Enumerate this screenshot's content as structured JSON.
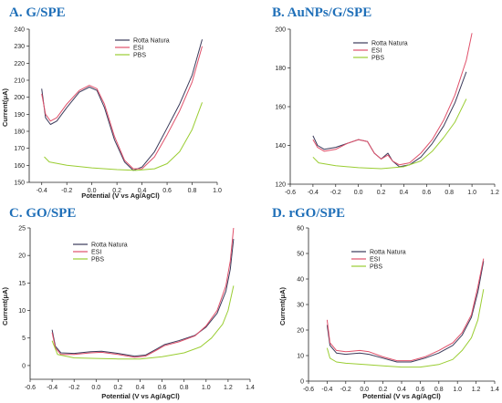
{
  "colors": {
    "rotta": "#3a3a5a",
    "esi": "#e0506a",
    "pbs": "#9acd32",
    "title": "#1f6fb8"
  },
  "chart_data": [
    {
      "type": "line",
      "title": "A.   G/SPE",
      "xlabel": "Potential (V vs Ag/AgCl)",
      "ylabel": "Current(μA)",
      "xlim": [
        -0.5,
        1.0
      ],
      "ylim": [
        150,
        240
      ],
      "xticks": [
        -0.4,
        -0.2,
        0.0,
        0.2,
        0.4,
        0.6,
        0.8,
        1.0
      ],
      "yticks": [
        150,
        160,
        170,
        180,
        190,
        200,
        210,
        220,
        230,
        240
      ],
      "legend": "top-left",
      "series": [
        {
          "name": "Rotta Natura",
          "color": "#3a3a5a",
          "x": [
            -0.4,
            -0.37,
            -0.33,
            -0.28,
            -0.2,
            -0.1,
            -0.02,
            0.04,
            0.1,
            0.18,
            0.26,
            0.33,
            0.4,
            0.5,
            0.6,
            0.7,
            0.8,
            0.88
          ],
          "y": [
            205,
            188,
            184,
            186,
            194,
            203,
            206,
            204,
            194,
            175,
            162,
            157,
            159,
            168,
            182,
            196,
            213,
            234
          ]
        },
        {
          "name": "ESI",
          "color": "#e0506a",
          "x": [
            -0.4,
            -0.37,
            -0.33,
            -0.28,
            -0.2,
            -0.1,
            -0.02,
            0.04,
            0.1,
            0.18,
            0.26,
            0.33,
            0.4,
            0.5,
            0.6,
            0.7,
            0.8,
            0.88
          ],
          "y": [
            202,
            190,
            186,
            188,
            196,
            204,
            207,
            205,
            196,
            177,
            163,
            158,
            158,
            165,
            178,
            192,
            209,
            230
          ]
        },
        {
          "name": "PBS",
          "color": "#9acd32",
          "x": [
            -0.38,
            -0.34,
            -0.2,
            0.0,
            0.2,
            0.35,
            0.5,
            0.6,
            0.7,
            0.8,
            0.88
          ],
          "y": [
            165,
            162,
            160,
            158.5,
            157.5,
            157,
            158,
            161,
            168,
            181,
            197
          ]
        }
      ]
    },
    {
      "type": "line",
      "title": "B.   AuNPs/G/SPE",
      "xlabel": "",
      "ylabel": "",
      "xlim": [
        -0.6,
        1.2
      ],
      "ylim": [
        120,
        200
      ],
      "xticks": [
        -0.6,
        -0.4,
        -0.2,
        0.0,
        0.2,
        0.4,
        0.6,
        0.8,
        1.0,
        1.2
      ],
      "yticks": [
        120,
        140,
        160,
        180,
        200
      ],
      "legend": "top-left",
      "series": [
        {
          "name": "Rotta Natura",
          "color": "#3a3a5a",
          "x": [
            -0.4,
            -0.36,
            -0.3,
            -0.2,
            -0.1,
            0.0,
            0.08,
            0.14,
            0.2,
            0.26,
            0.3,
            0.36,
            0.45,
            0.55,
            0.65,
            0.75,
            0.85,
            0.95
          ],
          "y": [
            145,
            140,
            138,
            139,
            141,
            143,
            142,
            136,
            133,
            136,
            132,
            129,
            130,
            134,
            141,
            150,
            162,
            178
          ]
        },
        {
          "name": "ESI",
          "color": "#e0506a",
          "x": [
            -0.4,
            -0.36,
            -0.3,
            -0.2,
            -0.1,
            0.0,
            0.08,
            0.14,
            0.2,
            0.26,
            0.3,
            0.36,
            0.45,
            0.55,
            0.65,
            0.75,
            0.85,
            0.95,
            1.0
          ],
          "y": [
            143,
            139,
            137,
            138,
            141,
            143,
            142,
            136,
            133,
            135,
            132,
            130,
            131,
            136,
            143,
            153,
            166,
            184,
            198
          ]
        },
        {
          "name": "PBS",
          "color": "#9acd32",
          "x": [
            -0.4,
            -0.35,
            -0.2,
            0.0,
            0.2,
            0.4,
            0.55,
            0.65,
            0.75,
            0.85,
            0.95
          ],
          "y": [
            134,
            131,
            129.5,
            128.5,
            128,
            129,
            132,
            137,
            144,
            152,
            164
          ]
        }
      ]
    },
    {
      "type": "line",
      "title": "C.   GO/SPE",
      "xlabel": "Potential (V vs Ag/AgCl)",
      "ylabel": "Current(μA)",
      "xlim": [
        -0.6,
        1.4
      ],
      "ylim": [
        -2.5,
        25
      ],
      "xticks": [
        -0.6,
        -0.4,
        -0.2,
        0.0,
        0.2,
        0.4,
        0.6,
        0.8,
        1.0,
        1.2,
        1.4
      ],
      "yticks": [
        0,
        5,
        10,
        15,
        20,
        25
      ],
      "legend": "top-left",
      "series": [
        {
          "name": "Rotta Natura",
          "color": "#3a3a5a",
          "x": [
            -0.4,
            -0.37,
            -0.32,
            -0.2,
            -0.05,
            0.05,
            0.2,
            0.35,
            0.45,
            0.55,
            0.62,
            0.75,
            0.9,
            1.0,
            1.1,
            1.18,
            1.22,
            1.25
          ],
          "y": [
            6.5,
            3.5,
            2.3,
            2.2,
            2.5,
            2.6,
            2.2,
            1.7,
            1.9,
            3.0,
            3.8,
            4.5,
            5.5,
            7.0,
            9.5,
            13.5,
            17.5,
            23
          ]
        },
        {
          "name": "ESI",
          "color": "#e0506a",
          "x": [
            -0.4,
            -0.37,
            -0.32,
            -0.2,
            -0.05,
            0.05,
            0.2,
            0.35,
            0.45,
            0.55,
            0.62,
            0.75,
            0.9,
            1.0,
            1.1,
            1.18,
            1.22,
            1.25
          ],
          "y": [
            6.0,
            3.2,
            2.0,
            2.0,
            2.3,
            2.4,
            2.0,
            1.5,
            1.7,
            2.8,
            3.6,
            4.3,
            5.4,
            7.2,
            10,
            14.5,
            19,
            25
          ]
        },
        {
          "name": "PBS",
          "color": "#9acd32",
          "x": [
            -0.4,
            -0.35,
            -0.2,
            0.0,
            0.2,
            0.4,
            0.6,
            0.8,
            0.95,
            1.05,
            1.15,
            1.2,
            1.25
          ],
          "y": [
            4.5,
            2.0,
            1.4,
            1.3,
            1.2,
            1.2,
            1.6,
            2.3,
            3.4,
            5.0,
            7.5,
            10,
            14.5
          ]
        }
      ]
    },
    {
      "type": "line",
      "title": "D.   rGO/SPE",
      "xlabel": "Potential (V vs Ag/AgCl)",
      "ylabel": "Current(μA)",
      "xlim": [
        -0.6,
        1.4
      ],
      "ylim": [
        0,
        60
      ],
      "xticks": [
        -0.6,
        -0.4,
        -0.2,
        0.0,
        0.2,
        0.4,
        0.6,
        0.8,
        1.0,
        1.2,
        1.4
      ],
      "yticks": [
        0,
        10,
        20,
        30,
        40,
        50,
        60
      ],
      "legend": "top-left",
      "series": [
        {
          "name": "Rotta Natura",
          "color": "#3a3a5a",
          "x": [
            -0.4,
            -0.37,
            -0.3,
            -0.2,
            -0.05,
            0.05,
            0.2,
            0.35,
            0.5,
            0.65,
            0.8,
            0.95,
            1.05,
            1.15,
            1.22,
            1.28
          ],
          "y": [
            22,
            14,
            11,
            10.5,
            11,
            10.5,
            9,
            7.5,
            7.5,
            9,
            11,
            14,
            18,
            25,
            35,
            47
          ]
        },
        {
          "name": "ESI",
          "color": "#e0506a",
          "x": [
            -0.4,
            -0.37,
            -0.3,
            -0.2,
            -0.05,
            0.05,
            0.2,
            0.35,
            0.5,
            0.65,
            0.8,
            0.95,
            1.05,
            1.15,
            1.22,
            1.28
          ],
          "y": [
            24,
            15,
            12,
            11.5,
            12,
            11.5,
            9.5,
            8,
            8,
            9.5,
            12,
            15,
            19,
            26,
            37,
            48
          ]
        },
        {
          "name": "PBS",
          "color": "#9acd32",
          "x": [
            -0.4,
            -0.37,
            -0.3,
            -0.2,
            0.0,
            0.2,
            0.4,
            0.6,
            0.8,
            0.95,
            1.05,
            1.15,
            1.22,
            1.28
          ],
          "y": [
            13,
            9,
            7.5,
            7,
            6.5,
            6,
            5.5,
            5.5,
            6.5,
            8.5,
            12,
            17,
            24,
            36
          ]
        }
      ]
    }
  ]
}
